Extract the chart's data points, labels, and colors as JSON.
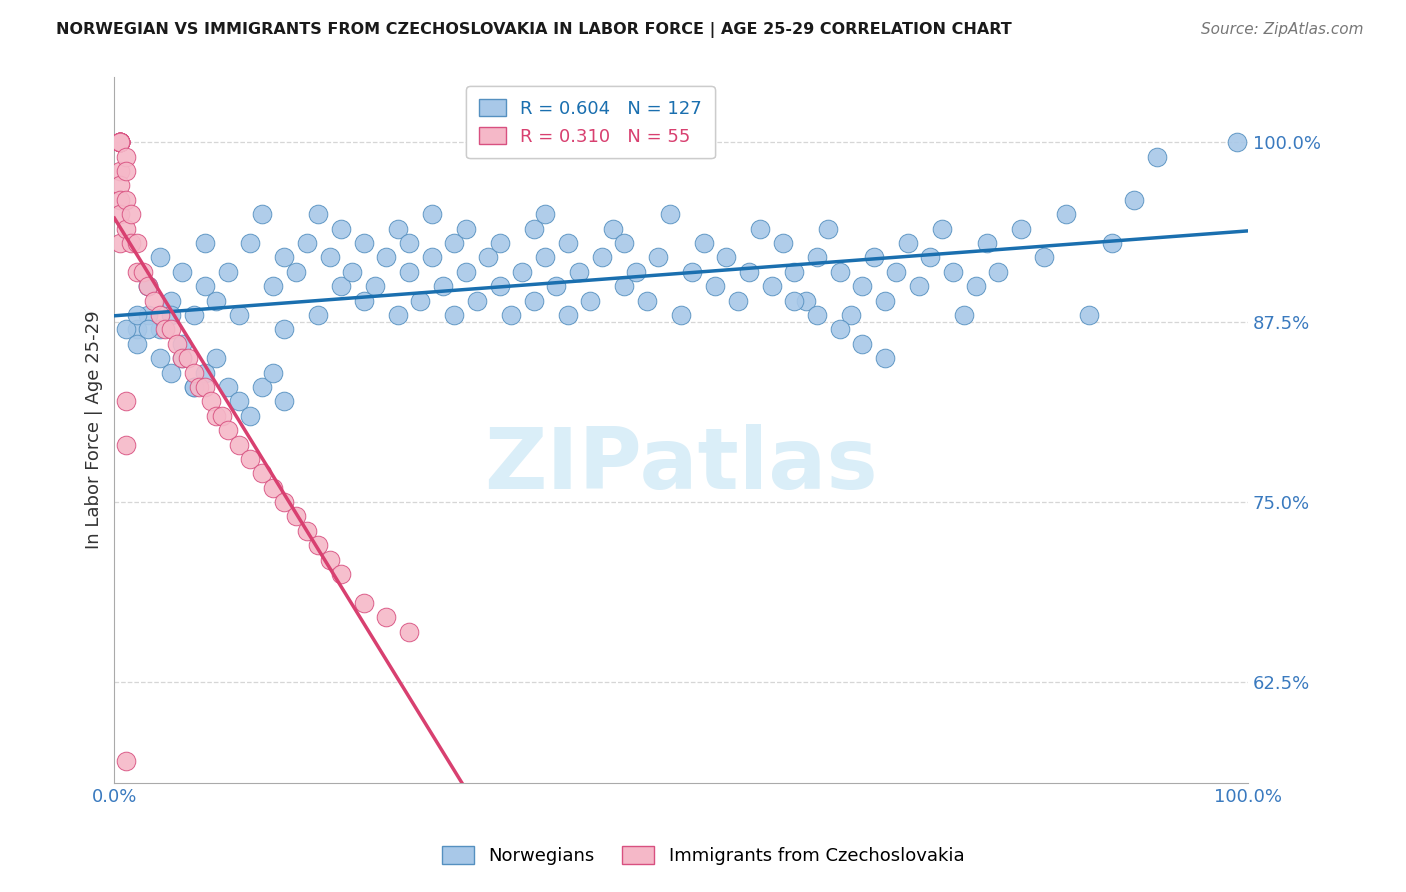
{
  "title": "NORWEGIAN VS IMMIGRANTS FROM CZECHOSLOVAKIA IN LABOR FORCE | AGE 25-29 CORRELATION CHART",
  "source": "Source: ZipAtlas.com",
  "ylabel": "In Labor Force | Age 25-29",
  "xlim": [
    0.0,
    1.0
  ],
  "ylim": [
    0.555,
    1.045
  ],
  "yticks": [
    0.625,
    0.75,
    0.875,
    1.0
  ],
  "ytick_labels": [
    "62.5%",
    "75.0%",
    "87.5%",
    "100.0%"
  ],
  "blue_color": "#a8c8e8",
  "pink_color": "#f5b8c8",
  "blue_edge_color": "#5590c0",
  "pink_edge_color": "#d85080",
  "blue_line_color": "#1a6faf",
  "pink_line_color": "#d84070",
  "tick_label_color": "#3a7abf",
  "grid_color": "#cccccc",
  "watermark_color": "#daeef8",
  "R_blue": 0.604,
  "N_blue": 127,
  "R_pink": 0.31,
  "N_pink": 55,
  "marker_size": 180,
  "blue_scatter_x": [
    0.02,
    0.03,
    0.03,
    0.04,
    0.05,
    0.06,
    0.07,
    0.08,
    0.08,
    0.09,
    0.1,
    0.11,
    0.12,
    0.13,
    0.14,
    0.15,
    0.15,
    0.16,
    0.17,
    0.18,
    0.18,
    0.19,
    0.2,
    0.2,
    0.21,
    0.22,
    0.22,
    0.23,
    0.24,
    0.25,
    0.25,
    0.26,
    0.26,
    0.27,
    0.28,
    0.28,
    0.29,
    0.3,
    0.3,
    0.31,
    0.31,
    0.32,
    0.33,
    0.34,
    0.34,
    0.35,
    0.36,
    0.37,
    0.37,
    0.38,
    0.38,
    0.39,
    0.4,
    0.4,
    0.41,
    0.42,
    0.43,
    0.44,
    0.45,
    0.45,
    0.46,
    0.47,
    0.48,
    0.49,
    0.5,
    0.51,
    0.52,
    0.53,
    0.54,
    0.55,
    0.56,
    0.57,
    0.58,
    0.59,
    0.6,
    0.61,
    0.62,
    0.63,
    0.64,
    0.65,
    0.66,
    0.67,
    0.68,
    0.69,
    0.7,
    0.71,
    0.72,
    0.73,
    0.74,
    0.75,
    0.76,
    0.77,
    0.78,
    0.8,
    0.82,
    0.84,
    0.86,
    0.88,
    0.9,
    0.92,
    0.01,
    0.02,
    0.03,
    0.04,
    0.05,
    0.06,
    0.07,
    0.02,
    0.03,
    0.04,
    0.05,
    0.06,
    0.07,
    0.08,
    0.09,
    0.1,
    0.11,
    0.12,
    0.13,
    0.14,
    0.15,
    0.6,
    0.62,
    0.64,
    0.66,
    0.68,
    0.99
  ],
  "blue_scatter_y": [
    0.87,
    0.88,
    0.9,
    0.92,
    0.89,
    0.91,
    0.88,
    0.9,
    0.93,
    0.89,
    0.91,
    0.88,
    0.93,
    0.95,
    0.9,
    0.87,
    0.92,
    0.91,
    0.93,
    0.88,
    0.95,
    0.92,
    0.9,
    0.94,
    0.91,
    0.89,
    0.93,
    0.9,
    0.92,
    0.88,
    0.94,
    0.91,
    0.93,
    0.89,
    0.92,
    0.95,
    0.9,
    0.88,
    0.93,
    0.91,
    0.94,
    0.89,
    0.92,
    0.9,
    0.93,
    0.88,
    0.91,
    0.94,
    0.89,
    0.92,
    0.95,
    0.9,
    0.88,
    0.93,
    0.91,
    0.89,
    0.92,
    0.94,
    0.9,
    0.93,
    0.91,
    0.89,
    0.92,
    0.95,
    0.88,
    0.91,
    0.93,
    0.9,
    0.92,
    0.89,
    0.91,
    0.94,
    0.9,
    0.93,
    0.91,
    0.89,
    0.92,
    0.94,
    0.91,
    0.88,
    0.9,
    0.92,
    0.89,
    0.91,
    0.93,
    0.9,
    0.92,
    0.94,
    0.91,
    0.88,
    0.9,
    0.93,
    0.91,
    0.94,
    0.92,
    0.95,
    0.88,
    0.93,
    0.96,
    0.99,
    0.87,
    0.88,
    0.9,
    0.87,
    0.88,
    0.85,
    0.83,
    0.86,
    0.87,
    0.85,
    0.84,
    0.86,
    0.83,
    0.84,
    0.85,
    0.83,
    0.82,
    0.81,
    0.83,
    0.84,
    0.82,
    0.89,
    0.88,
    0.87,
    0.86,
    0.85,
    1.0
  ],
  "pink_scatter_x": [
    0.005,
    0.005,
    0.005,
    0.005,
    0.005,
    0.005,
    0.005,
    0.005,
    0.005,
    0.005,
    0.005,
    0.005,
    0.005,
    0.005,
    0.005,
    0.01,
    0.01,
    0.01,
    0.01,
    0.015,
    0.015,
    0.02,
    0.02,
    0.025,
    0.03,
    0.035,
    0.04,
    0.045,
    0.05,
    0.055,
    0.06,
    0.065,
    0.07,
    0.075,
    0.08,
    0.085,
    0.09,
    0.095,
    0.1,
    0.11,
    0.12,
    0.13,
    0.14,
    0.15,
    0.16,
    0.17,
    0.18,
    0.19,
    0.2,
    0.22,
    0.24,
    0.26,
    0.01,
    0.01,
    0.01
  ],
  "pink_scatter_y": [
    1.0,
    1.0,
    1.0,
    1.0,
    1.0,
    1.0,
    1.0,
    1.0,
    1.0,
    1.0,
    0.98,
    0.97,
    0.96,
    0.95,
    0.93,
    0.99,
    0.98,
    0.96,
    0.94,
    0.95,
    0.93,
    0.93,
    0.91,
    0.91,
    0.9,
    0.89,
    0.88,
    0.87,
    0.87,
    0.86,
    0.85,
    0.85,
    0.84,
    0.83,
    0.83,
    0.82,
    0.81,
    0.81,
    0.8,
    0.79,
    0.78,
    0.77,
    0.76,
    0.75,
    0.74,
    0.73,
    0.72,
    0.71,
    0.7,
    0.68,
    0.67,
    0.66,
    0.82,
    0.79,
    0.57
  ]
}
